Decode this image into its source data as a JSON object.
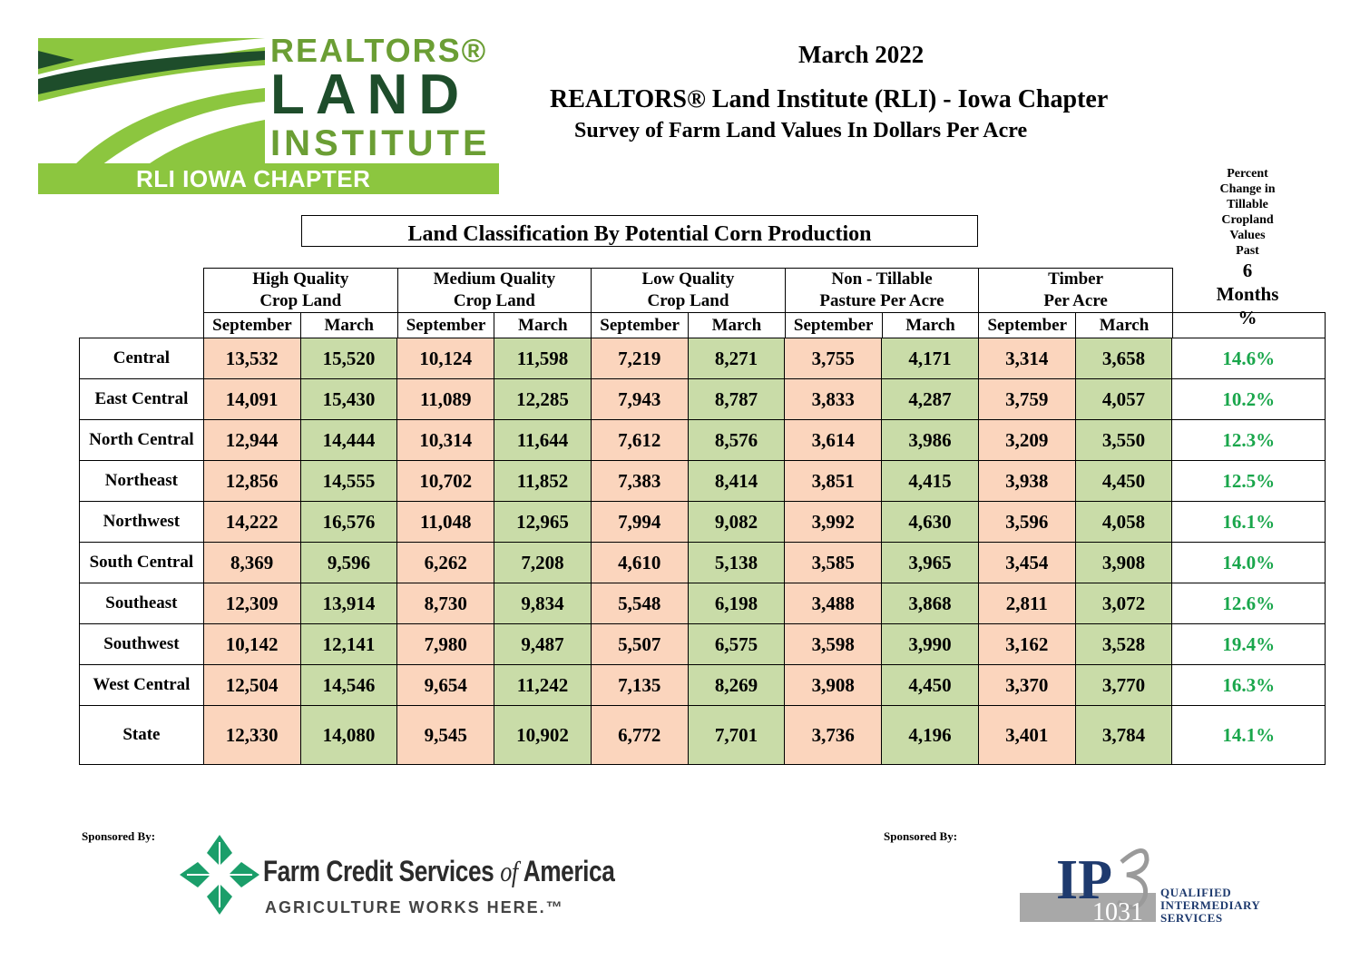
{
  "logo": {
    "line1": "REALTORS®",
    "line2": "LAND",
    "line3": "INSTITUTE",
    "chapter": "RLI IOWA CHAPTER",
    "colors": {
      "green": "#8cc63f",
      "dark_green": "#1e4d2b"
    }
  },
  "header": {
    "date": "March 2022",
    "title": "REALTORS® Land Institute (RLI) - Iowa Chapter",
    "subtitle": "Survey of Farm Land Values In Dollars Per Acre",
    "classification": "Land Classification By Potential Corn Production"
  },
  "percent_header": {
    "line1": "Percent",
    "line2": "Change in",
    "line3": "Tillable",
    "line4": "Cropland",
    "line5": "Values",
    "line6": "Past",
    "line7": "6",
    "line8": "Months",
    "line9": "%"
  },
  "groups": [
    {
      "line1": "High Quality",
      "line2": "Crop Land"
    },
    {
      "line1": "Medium Quality",
      "line2": "Crop Land"
    },
    {
      "line1": "Low Quality",
      "line2": "Crop Land"
    },
    {
      "line1": "Non - Tillable",
      "line2": "Pasture Per Acre"
    },
    {
      "line1": "Timber",
      "line2": "Per Acre"
    }
  ],
  "subheaders": {
    "sep": "September",
    "mar": "March"
  },
  "rows": [
    {
      "region": "Central",
      "v": [
        "13,532",
        "15,520",
        "10,124",
        "11,598",
        "7,219",
        "8,271",
        "3,755",
        "4,171",
        "3,314",
        "3,658"
      ],
      "pct": "14.6%"
    },
    {
      "region": "East Central",
      "v": [
        "14,091",
        "15,430",
        "11,089",
        "12,285",
        "7,943",
        "8,787",
        "3,833",
        "4,287",
        "3,759",
        "4,057"
      ],
      "pct": "10.2%"
    },
    {
      "region": "North Central",
      "v": [
        "12,944",
        "14,444",
        "10,314",
        "11,644",
        "7,612",
        "8,576",
        "3,614",
        "3,986",
        "3,209",
        "3,550"
      ],
      "pct": "12.3%"
    },
    {
      "region": "Northeast",
      "v": [
        "12,856",
        "14,555",
        "10,702",
        "11,852",
        "7,383",
        "8,414",
        "3,851",
        "4,415",
        "3,938",
        "4,450"
      ],
      "pct": "12.5%"
    },
    {
      "region": "Northwest",
      "v": [
        "14,222",
        "16,576",
        "11,048",
        "12,965",
        "7,994",
        "9,082",
        "3,992",
        "4,630",
        "3,596",
        "4,058"
      ],
      "pct": "16.1%"
    },
    {
      "region": "South Central",
      "v": [
        "8,369",
        "9,596",
        "6,262",
        "7,208",
        "4,610",
        "5,138",
        "3,585",
        "3,965",
        "3,454",
        "3,908"
      ],
      "pct": "14.0%"
    },
    {
      "region": "Southeast",
      "v": [
        "12,309",
        "13,914",
        "8,730",
        "9,834",
        "5,548",
        "6,198",
        "3,488",
        "3,868",
        "2,811",
        "3,072"
      ],
      "pct": "12.6%"
    },
    {
      "region": "Southwest",
      "v": [
        "10,142",
        "12,141",
        "7,980",
        "9,487",
        "5,507",
        "6,575",
        "3,598",
        "3,990",
        "3,162",
        "3,528"
      ],
      "pct": "19.4%"
    },
    {
      "region": "West Central",
      "v": [
        "12,504",
        "14,546",
        "9,654",
        "11,242",
        "7,135",
        "8,269",
        "3,908",
        "4,450",
        "3,370",
        "3,770"
      ],
      "pct": "16.3%"
    },
    {
      "region": "State",
      "v": [
        "12,330",
        "14,080",
        "9,545",
        "10,902",
        "6,772",
        "7,701",
        "3,736",
        "4,196",
        "3,401",
        "3,784"
      ],
      "pct": "14.1%"
    }
  ],
  "colors": {
    "september_fill": "#fbd5bd",
    "march_fill": "#c9dca8",
    "percent_text": "#19a64b"
  },
  "sponsors": {
    "label": "Sponsored By:",
    "fcs_name_a": "Farm Credit Services ",
    "fcs_name_of": "of",
    "fcs_name_b": " America",
    "fcs_tagline": "AGRICULTURE WORKS HERE.™",
    "ipe_mark": "IP",
    "ipe_num": "1031",
    "ipe_line1": "QUALIFIED",
    "ipe_line2": "INTERMEDIARY",
    "ipe_line3": "SERVICES"
  }
}
